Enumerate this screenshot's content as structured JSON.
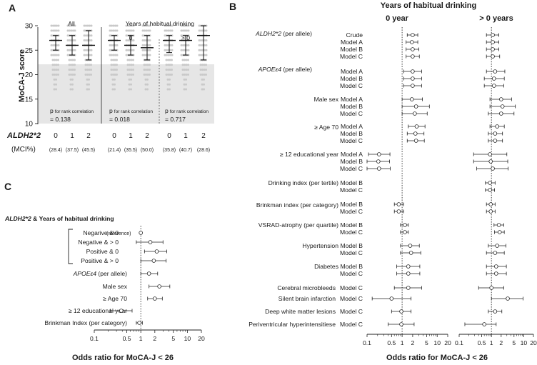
{
  "panel_a": {
    "letter": "A",
    "group_all": "All",
    "group_years": "Years of habitual drinking",
    "sub_zero": "0",
    "sub_gt_zero": "> 0",
    "gene_label": "ALDH2*2",
    "mci_label": "(MCI%)",
    "genotype_ticks": [
      "0",
      "1",
      "2"
    ],
    "mci_values": [
      "(28.4)",
      "(37.5)",
      "(45.5)",
      "(21.4)",
      "(35.5)",
      "(50.0)",
      "(35.8)",
      "(40.7)",
      "(28.6)"
    ],
    "p_prefix": "p",
    "p_suffix": "for rank correlation",
    "p_values": [
      "= 0.138",
      "= 0.018",
      "= 0.717"
    ]
  },
  "panel_b": {
    "letter": "B",
    "title": "Years of habitual drinking",
    "col_zero": "0 year",
    "col_gt_zero": "> 0 years",
    "gene_row_label": "ALDH2*2",
    "gene_row_suffix": " (per allele)",
    "apoe_label": "APOEε4",
    "apoe_suffix": " (per allele)",
    "row_labels": [
      "Male sex",
      "≥ Age 70",
      "≥ 12 educational year",
      "Drinking index (per tertile)",
      "Brinkman index (per category)",
      "VSRAD-atrophy (per quartile)",
      "Hypertension",
      "Diabetes",
      "Cerebral microbleeds",
      "Silent brain infarction",
      "Deep white matter lesions",
      "Periventricular hyperintensitiese"
    ],
    "model_labels": [
      "Crude",
      "Model A",
      "Model B",
      "Model C",
      "Model A",
      "Model B",
      "Model C",
      "Model A",
      "Model B",
      "Model C",
      "Model A",
      "Model B",
      "Model C",
      "Model A",
      "Model B",
      "Model C",
      "Model B",
      "Model C",
      "Model B",
      "Model C",
      "Model B",
      "Model C",
      "Model B",
      "Model C",
      "Model B",
      "Model C",
      "Model C",
      "Model C",
      "Model C",
      "Model C"
    ],
    "ticks": [
      "0.1",
      "0.5",
      "1",
      "2",
      "5",
      "10",
      "20"
    ],
    "x_title": "Odds ratio for MoCA-J < 26"
  },
  "panel_c": {
    "letter": "C",
    "gene_label": "ALDH2*2",
    "gene_suffix": " & Years of habitual drinking",
    "row_labels": [
      "Negarive & 0",
      "Negative & > 0",
      "Positive & 0",
      "Positive & > 0",
      "APOEε4 (per allele)",
      "Male sex",
      "≥ Age 70",
      "≥ 12 educational year",
      "Brinkman Index (per category)"
    ],
    "reference_label": "(reference)",
    "ticks": [
      "0.1",
      "0.5",
      "1",
      "2",
      "5",
      "10",
      "20"
    ],
    "x_title": "Odds ratio for MoCA-J < 26"
  },
  "chart_data": [
    {
      "id": "A",
      "type": "scatter",
      "title": "",
      "ylabel": "MoCA-J score",
      "ylim": [
        10,
        31
      ],
      "yticks": [
        10,
        15,
        20,
        25,
        30
      ],
      "shaded_region_y": [
        10,
        25.5
      ],
      "cutoff_y": 25.5,
      "groups": [
        {
          "name": "All",
          "genotype": "0",
          "median": 27,
          "q1": 25,
          "q3": 28,
          "mci_pct": 28.4
        },
        {
          "name": "All",
          "genotype": "1",
          "median": 26,
          "q1": 24,
          "q3": 28,
          "mci_pct": 37.5
        },
        {
          "name": "All",
          "genotype": "2",
          "median": 26,
          "q1": 23,
          "q3": 29,
          "mci_pct": 45.5
        },
        {
          "name": "0",
          "genotype": "0",
          "median": 27,
          "q1": 25,
          "q3": 28,
          "mci_pct": 21.4
        },
        {
          "name": "0",
          "genotype": "1",
          "median": 26,
          "q1": 24,
          "q3": 28,
          "mci_pct": 35.5
        },
        {
          "name": "0",
          "genotype": "2",
          "median": 25.5,
          "q1": 23,
          "q3": 28,
          "mci_pct": 50.0
        },
        {
          "name": "> 0",
          "genotype": "0",
          "median": 27,
          "q1": 24.5,
          "q3": 28,
          "mci_pct": 35.8
        },
        {
          "name": "> 0",
          "genotype": "1",
          "median": 27,
          "q1": 24,
          "q3": 28,
          "mci_pct": 40.7
        },
        {
          "name": "> 0",
          "genotype": "2",
          "median": 28,
          "q1": 23,
          "q3": 30,
          "mci_pct": 28.6
        }
      ],
      "p_for_rank_correlation": [
        0.138,
        0.018,
        0.717
      ]
    },
    {
      "id": "B-0-year",
      "type": "scatter",
      "subtype": "forest",
      "xscale": "log",
      "xlim": [
        0.1,
        20
      ],
      "reference_line": 1,
      "xlabel": "Odds ratio for MoCA-J < 26",
      "points": [
        {
          "label": "ALDH2*2 Crude",
          "or": 2.0,
          "lo": 1.4,
          "hi": 2.8
        },
        {
          "label": "ALDH2*2 Model A",
          "or": 1.9,
          "lo": 1.3,
          "hi": 2.8
        },
        {
          "label": "ALDH2*2 Model B",
          "or": 2.0,
          "lo": 1.3,
          "hi": 3.0
        },
        {
          "label": "ALDH2*2 Model C",
          "or": 2.0,
          "lo": 1.3,
          "hi": 3.1
        },
        {
          "label": "APOEε4 Model A",
          "or": 2.0,
          "lo": 1.1,
          "hi": 3.6
        },
        {
          "label": "APOEε4 Model B",
          "or": 2.0,
          "lo": 1.1,
          "hi": 3.6
        },
        {
          "label": "APOEε4 Model C",
          "or": 2.0,
          "lo": 1.1,
          "hi": 3.6
        },
        {
          "label": "Male sex Model A",
          "or": 1.9,
          "lo": 1.0,
          "hi": 3.8
        },
        {
          "label": "Male sex Model B",
          "or": 2.5,
          "lo": 1.0,
          "hi": 6.0
        },
        {
          "label": "Male sex Model C",
          "or": 2.3,
          "lo": 1.0,
          "hi": 5.2
        },
        {
          "label": "≥ Age 70 Model A",
          "or": 2.6,
          "lo": 1.5,
          "hi": 4.5
        },
        {
          "label": "≥ Age 70 Model B",
          "or": 2.4,
          "lo": 1.4,
          "hi": 4.2
        },
        {
          "label": "≥ Age 70 Model C",
          "or": 2.5,
          "lo": 1.4,
          "hi": 4.3
        },
        {
          "label": "≥ 12 educational year Model A",
          "or": 0.22,
          "lo": 0.11,
          "hi": 0.45
        },
        {
          "label": "≥ 12 educational year Model B",
          "or": 0.21,
          "lo": 0.1,
          "hi": 0.44
        },
        {
          "label": "≥ 12 educational year Model C",
          "or": 0.22,
          "lo": 0.1,
          "hi": 0.46
        },
        {
          "label": "Brinkman index Model B",
          "or": 0.8,
          "lo": 0.6,
          "hi": 1.1
        },
        {
          "label": "Brinkman index Model C",
          "or": 0.8,
          "lo": 0.6,
          "hi": 1.1
        },
        {
          "label": "VSRAD-atrophy Model B",
          "or": 1.2,
          "lo": 0.9,
          "hi": 1.5
        },
        {
          "label": "VSRAD-atrophy Model C",
          "or": 1.2,
          "lo": 0.9,
          "hi": 1.5
        },
        {
          "label": "Hypertension Model B",
          "or": 1.7,
          "lo": 0.9,
          "hi": 3.1
        },
        {
          "label": "Hypertension Model C",
          "or": 1.8,
          "lo": 0.9,
          "hi": 3.4
        },
        {
          "label": "Diabetes Model B",
          "or": 1.5,
          "lo": 0.7,
          "hi": 3.2
        },
        {
          "label": "Diabetes Model C",
          "or": 1.5,
          "lo": 0.7,
          "hi": 3.2
        },
        {
          "label": "Cerebral microbleeds Model C",
          "or": 1.5,
          "lo": 0.6,
          "hi": 3.6
        },
        {
          "label": "Silent brain infarction Model C",
          "or": 0.5,
          "lo": 0.14,
          "hi": 1.8
        },
        {
          "label": "Deep white matter lesions Model C",
          "or": 0.95,
          "lo": 0.5,
          "hi": 1.8
        },
        {
          "label": "Periventricular hyperintensitiese Model C",
          "or": 0.95,
          "lo": 0.4,
          "hi": 2.2
        }
      ]
    },
    {
      "id": "B-gt-0-years",
      "type": "scatter",
      "subtype": "forest",
      "xscale": "log",
      "xlim": [
        0.1,
        20
      ],
      "reference_line": 1,
      "xlabel": "Odds ratio for MoCA-J < 26",
      "points": [
        {
          "label": "ALDH2*2 Crude",
          "or": 1.1,
          "lo": 0.7,
          "hi": 1.7
        },
        {
          "label": "ALDH2*2 Model A",
          "or": 1.1,
          "lo": 0.7,
          "hi": 1.7
        },
        {
          "label": "ALDH2*2 Model B",
          "or": 1.1,
          "lo": 0.7,
          "hi": 1.7
        },
        {
          "label": "ALDH2*2 Model C",
          "or": 1.1,
          "lo": 0.7,
          "hi": 1.8
        },
        {
          "label": "APOEε4 Model A",
          "or": 1.3,
          "lo": 0.7,
          "hi": 2.6
        },
        {
          "label": "APOEε4 Model B",
          "or": 1.2,
          "lo": 0.6,
          "hi": 2.5
        },
        {
          "label": "APOEε4 Model C",
          "or": 1.2,
          "lo": 0.6,
          "hi": 2.4
        },
        {
          "label": "Male sex Model A",
          "or": 2.0,
          "lo": 0.9,
          "hi": 4.2
        },
        {
          "label": "Male sex Model B",
          "or": 2.2,
          "lo": 0.9,
          "hi": 5.5
        },
        {
          "label": "Male sex Model C",
          "or": 2.0,
          "lo": 0.8,
          "hi": 5.0
        },
        {
          "label": "≥ Age 70 Model A",
          "or": 1.5,
          "lo": 0.9,
          "hi": 2.5
        },
        {
          "label": "≥ Age 70 Model B",
          "or": 1.3,
          "lo": 0.8,
          "hi": 2.2
        },
        {
          "label": "≥ Age 70 Model C",
          "or": 1.3,
          "lo": 0.8,
          "hi": 2.2
        },
        {
          "label": "≥ 12 educational year Model A",
          "or": 0.9,
          "lo": 0.28,
          "hi": 3.0
        },
        {
          "label": "≥ 12 educational year Model B",
          "or": 0.95,
          "lo": 0.28,
          "hi": 3.2
        },
        {
          "label": "≥ 12 educational year Model C",
          "or": 1.1,
          "lo": 0.35,
          "hi": 3.3
        },
        {
          "label": "Drinking index Model B",
          "or": 0.9,
          "lo": 0.65,
          "hi": 1.3
        },
        {
          "label": "Drinking index Model C",
          "or": 0.9,
          "lo": 0.65,
          "hi": 1.25
        },
        {
          "label": "Brinkman index Model B",
          "or": 0.95,
          "lo": 0.7,
          "hi": 1.3
        },
        {
          "label": "Brinkman index Model C",
          "or": 0.95,
          "lo": 0.7,
          "hi": 1.3
        },
        {
          "label": "VSRAD-atrophy Model B",
          "or": 1.7,
          "lo": 1.2,
          "hi": 2.4
        },
        {
          "label": "VSRAD-atrophy Model C",
          "or": 1.8,
          "lo": 1.25,
          "hi": 2.5
        },
        {
          "label": "Hypertension Model B",
          "or": 1.5,
          "lo": 0.8,
          "hi": 2.8
        },
        {
          "label": "Hypertension Model C",
          "or": 1.3,
          "lo": 0.7,
          "hi": 2.5
        },
        {
          "label": "Diabetes Model B",
          "or": 1.4,
          "lo": 0.7,
          "hi": 2.9
        },
        {
          "label": "Diabetes Model C",
          "or": 1.4,
          "lo": 0.7,
          "hi": 2.9
        },
        {
          "label": "Cerebral microbleeds Model C",
          "or": 1.0,
          "lo": 0.4,
          "hi": 2.4
        },
        {
          "label": "Silent brain infarction Model C",
          "or": 3.2,
          "lo": 1.0,
          "hi": 9.5
        },
        {
          "label": "Deep white matter lesions Model C",
          "or": 1.3,
          "lo": 0.8,
          "hi": 2.1
        },
        {
          "label": "Periventricular hyperintensitiese Model C",
          "or": 0.6,
          "lo": 0.15,
          "hi": 1.4
        }
      ]
    },
    {
      "id": "C",
      "type": "scatter",
      "subtype": "forest",
      "xscale": "log",
      "xlim": [
        0.1,
        20
      ],
      "reference_line": 1,
      "xlabel": "Odds ratio for MoCA-J < 26",
      "points": [
        {
          "label": "Negarive & 0",
          "or": 1.0,
          "lo": 1.0,
          "hi": 1.0,
          "reference": true
        },
        {
          "label": "Negative & > 0",
          "or": 1.6,
          "lo": 0.8,
          "hi": 3.0
        },
        {
          "label": "Positive & 0",
          "or": 2.2,
          "lo": 1.2,
          "hi": 3.6
        },
        {
          "label": "Positive & > 0",
          "or": 1.9,
          "lo": 1.0,
          "hi": 3.5
        },
        {
          "label": "APOEε4 (per allele)",
          "or": 1.5,
          "lo": 1.0,
          "hi": 2.3
        },
        {
          "label": "Male sex",
          "or": 2.5,
          "lo": 1.5,
          "hi": 4.2
        },
        {
          "label": "≥ Age 70",
          "or": 2.0,
          "lo": 1.4,
          "hi": 2.9
        },
        {
          "label": "≥ 12 educational year",
          "or": 0.38,
          "lo": 0.22,
          "hi": 0.65
        },
        {
          "label": "Brinkman Index (per category)",
          "or": 0.93,
          "lo": 0.8,
          "hi": 1.08
        }
      ]
    }
  ]
}
